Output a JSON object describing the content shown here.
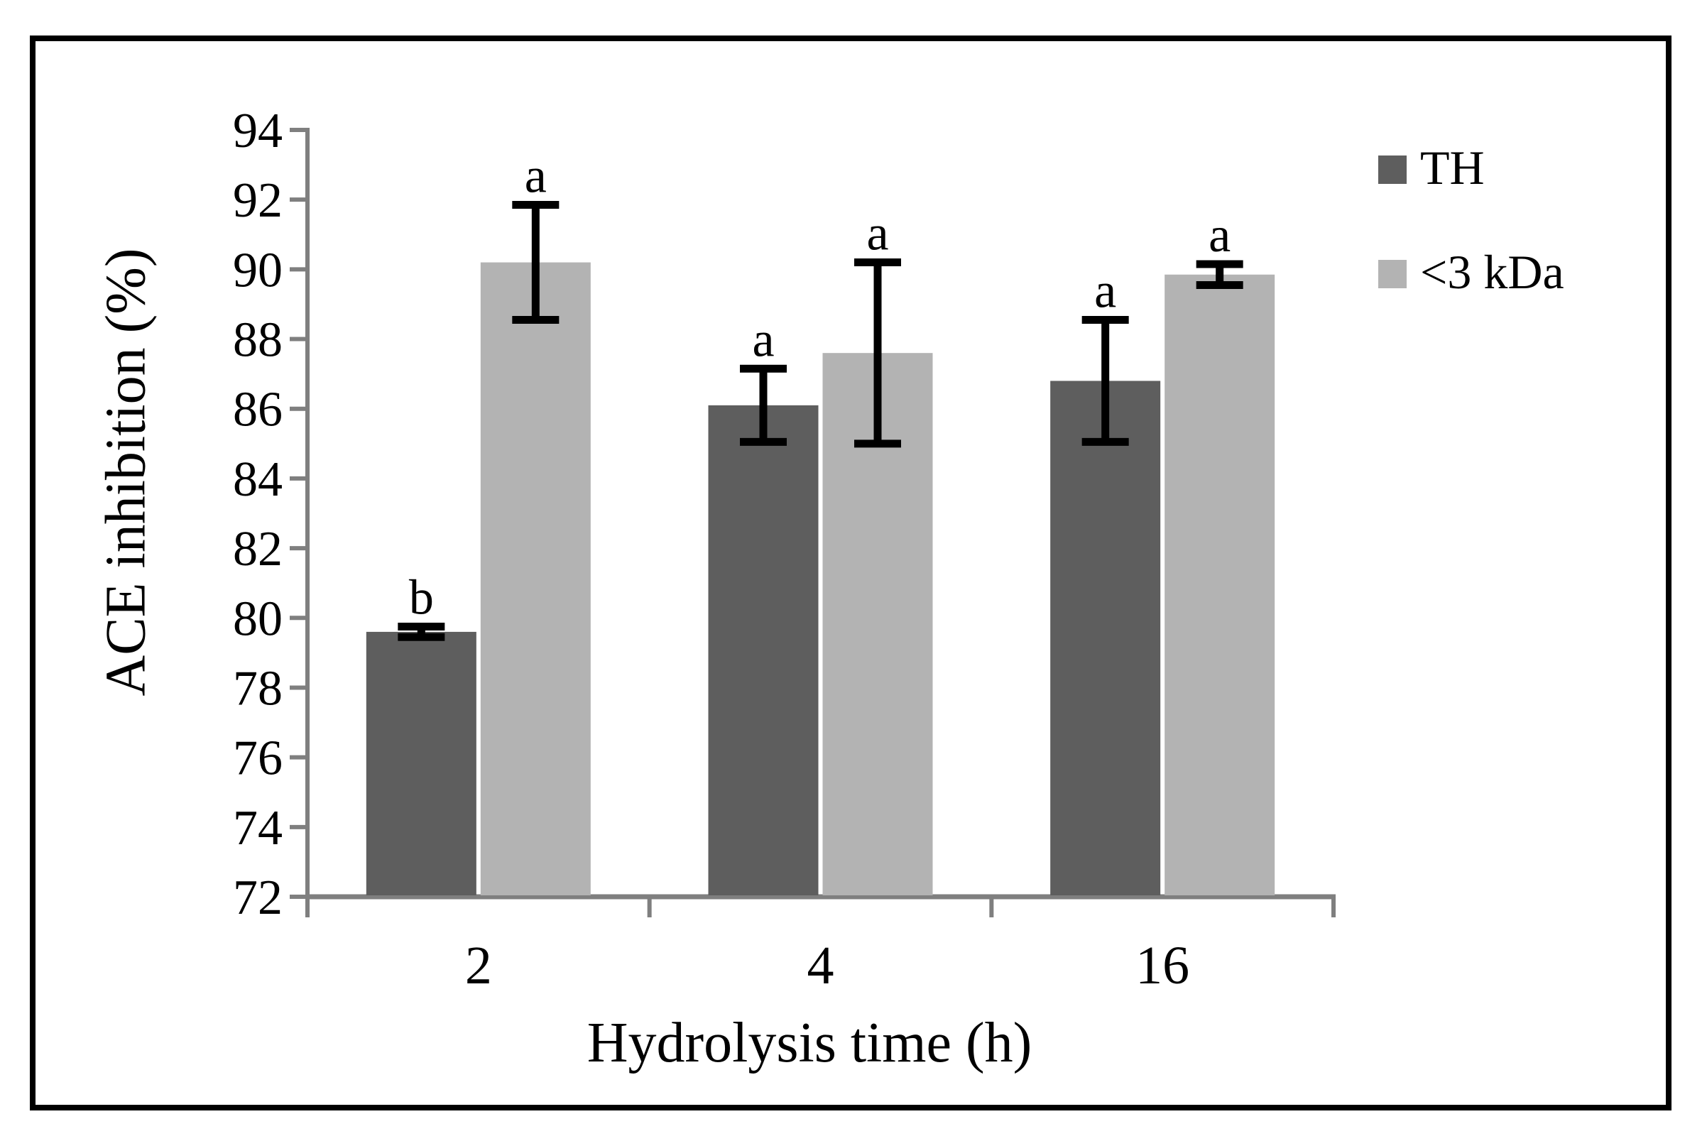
{
  "chart_data": {
    "type": "bar",
    "title": "",
    "xlabel": "Hydrolysis time (h)",
    "ylabel": "ACE inhibition (%)",
    "categories": [
      "2",
      "4",
      "16"
    ],
    "series": [
      {
        "name": "TH",
        "color": "#5e5e5e",
        "values": [
          79.6,
          86.1,
          86.8
        ],
        "errors": [
          0.15,
          1.05,
          1.75
        ],
        "letters": [
          "b",
          "a",
          "a"
        ]
      },
      {
        "name": "<3 kDa",
        "color": "#b3b3b3",
        "values": [
          90.2,
          87.6,
          89.85
        ],
        "errors": [
          1.65,
          2.6,
          0.3
        ],
        "letters": [
          "a",
          "a",
          "a"
        ]
      }
    ],
    "ylim": [
      72,
      94
    ],
    "ytick_step": 2,
    "grid": false,
    "legend_position": "top-right",
    "axis_color": "#7f7f7f",
    "error_bar_color": "#000000"
  }
}
